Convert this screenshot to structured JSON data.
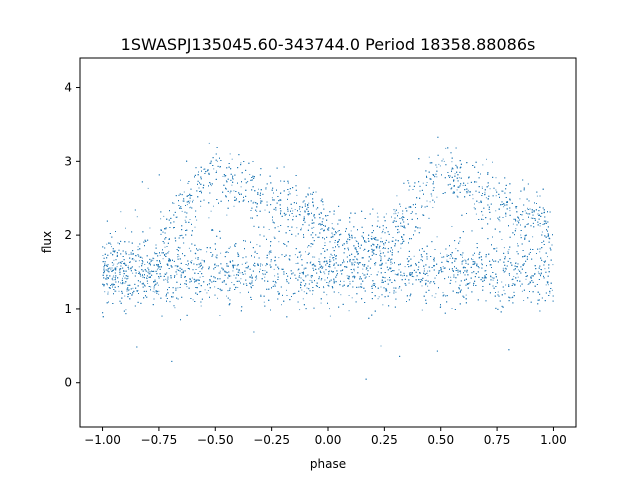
{
  "chart_data": {
    "type": "scatter",
    "title": "1SWASPJ135045.60-343744.0 Period 18358.88086s",
    "xlabel": "phase",
    "ylabel": "flux",
    "xlim": [
      -1.1,
      1.1
    ],
    "ylim": [
      -0.6,
      4.4
    ],
    "x_ticks": [
      -1.0,
      -0.75,
      -0.5,
      -0.25,
      0.0,
      0.25,
      0.5,
      0.75,
      1.0
    ],
    "x_tick_labels": [
      "−1.00",
      "−0.75",
      "−0.50",
      "−0.25",
      "0.00",
      "0.25",
      "0.50",
      "0.75",
      "1.00"
    ],
    "y_ticks": [
      0,
      1,
      2,
      3,
      4
    ],
    "y_tick_labels": [
      "0",
      "1",
      "2",
      "3",
      "4"
    ],
    "grid": false,
    "series_color": "#1f77b4",
    "phase_range": [
      -1.0,
      1.0
    ],
    "baseline_flux": 1.5,
    "baseline_scatter": 0.22,
    "upper_branch": [
      {
        "phase": -0.75,
        "flux": 1.9
      },
      {
        "phase": -0.5,
        "flux": 2.85
      },
      {
        "phase": -0.35,
        "flux": 2.6
      },
      {
        "phase": -0.2,
        "flux": 2.35
      },
      {
        "phase": -0.05,
        "flux": 2.15
      },
      {
        "phase": 0.15,
        "flux": 1.85
      },
      {
        "phase": 0.25,
        "flux": 1.9
      }
    ]
  }
}
